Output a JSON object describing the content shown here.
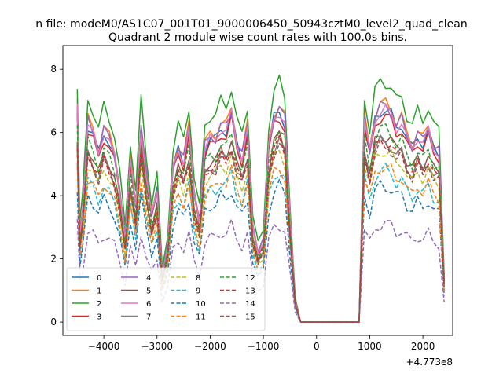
{
  "chart_data": {
    "type": "line",
    "suptitle": "n file: modeM0/AS1C07_001T01_9000006450_50943cztM0_level2_quad_clean",
    "title": "Quadrant 2 module wise count rates with 100.0s bins.",
    "xlabel": "",
    "ylabel": "",
    "x_offset_label": "+4.773e8",
    "xlim": [
      -4770,
      2560
    ],
    "ylim": [
      -0.42,
      8.75
    ],
    "xticks": [
      -4000,
      -3000,
      -2000,
      -1000,
      0,
      1000,
      2000
    ],
    "xtick_labels": [
      "−4000",
      "−3000",
      "−2000",
      "−1000",
      "0",
      "1000",
      "2000"
    ],
    "yticks": [
      0,
      2,
      4,
      6,
      8
    ],
    "ytick_labels": [
      "0",
      "2",
      "4",
      "6",
      "8"
    ],
    "grid": false,
    "legend": {
      "placement": "lower-left",
      "columns": 4
    },
    "x": [
      -4500,
      -4450,
      -4400,
      -4300,
      -4200,
      -4100,
      -4000,
      -3900,
      -3800,
      -3700,
      -3600,
      -3500,
      -3400,
      -3300,
      -3200,
      -3100,
      -3000,
      -2900,
      -2800,
      -2700,
      -2600,
      -2500,
      -2400,
      -2300,
      -2200,
      -2100,
      -2000,
      -1900,
      -1800,
      -1700,
      -1600,
      -1500,
      -1400,
      -1300,
      -1200,
      -1100,
      -1000,
      -900,
      -800,
      -700,
      -600,
      -500,
      -400,
      -300,
      -200,
      -100,
      0,
      100,
      200,
      300,
      400,
      500,
      600,
      700,
      800,
      900,
      1000,
      1100,
      1200,
      1300,
      1400,
      1500,
      1600,
      1700,
      1800,
      1900,
      2000,
      2100,
      2200,
      2300,
      2400
    ],
    "envelope": [
      1.0,
      0.42,
      0.52,
      0.93,
      0.88,
      0.8,
      0.9,
      0.85,
      0.78,
      0.62,
      0.4,
      0.75,
      0.55,
      0.92,
      0.68,
      0.5,
      0.62,
      0.22,
      0.36,
      0.72,
      0.82,
      0.76,
      0.9,
      0.6,
      0.48,
      0.82,
      0.86,
      0.86,
      0.92,
      0.9,
      0.98,
      0.84,
      0.78,
      0.9,
      0.45,
      0.33,
      0.38,
      0.82,
      0.96,
      1.0,
      0.94,
      0.5,
      0.1,
      0,
      0,
      0,
      0,
      0,
      0,
      0,
      0,
      0,
      0,
      0,
      0,
      0.94,
      0.8,
      0.96,
      1.0,
      1.0,
      0.98,
      0.92,
      0.94,
      0.86,
      0.82,
      0.88,
      0.84,
      0.9,
      0.82,
      0.8,
      0.2
    ],
    "series": [
      {
        "name": "0",
        "color": "#1f77b4",
        "dash": false,
        "level": 6.7
      },
      {
        "name": "1",
        "color": "#ff7f0e",
        "dash": false,
        "level": 6.9
      },
      {
        "name": "2",
        "color": "#2ca02c",
        "dash": false,
        "level": 7.6
      },
      {
        "name": "3",
        "color": "#d62728",
        "dash": false,
        "level": 6.5
      },
      {
        "name": "4",
        "color": "#9467bd",
        "dash": false,
        "level": 6.8
      },
      {
        "name": "5",
        "color": "#8c564b",
        "dash": false,
        "level": 5.9
      },
      {
        "name": "6",
        "color": "#e377c2",
        "dash": false,
        "level": 6.7
      },
      {
        "name": "7",
        "color": "#7f7f7f",
        "dash": false,
        "level": 5.7
      },
      {
        "name": "8",
        "color": "#bcbd22",
        "dash": true,
        "level": 5.4
      },
      {
        "name": "9",
        "color": "#17becf",
        "dash": true,
        "level": 4.8
      },
      {
        "name": "10",
        "color": "#1f77b4",
        "dash": true,
        "level": 4.3
      },
      {
        "name": "11",
        "color": "#ff7f0e",
        "dash": true,
        "level": 4.9
      },
      {
        "name": "12",
        "color": "#2ca02c",
        "dash": true,
        "level": 6.1
      },
      {
        "name": "13",
        "color": "#d62728",
        "dash": true,
        "level": 5.7
      },
      {
        "name": "14",
        "color": "#9467bd",
        "dash": true,
        "level": 3.1
      },
      {
        "name": "15",
        "color": "#8c564b",
        "dash": true,
        "level": 5.6
      }
    ]
  }
}
